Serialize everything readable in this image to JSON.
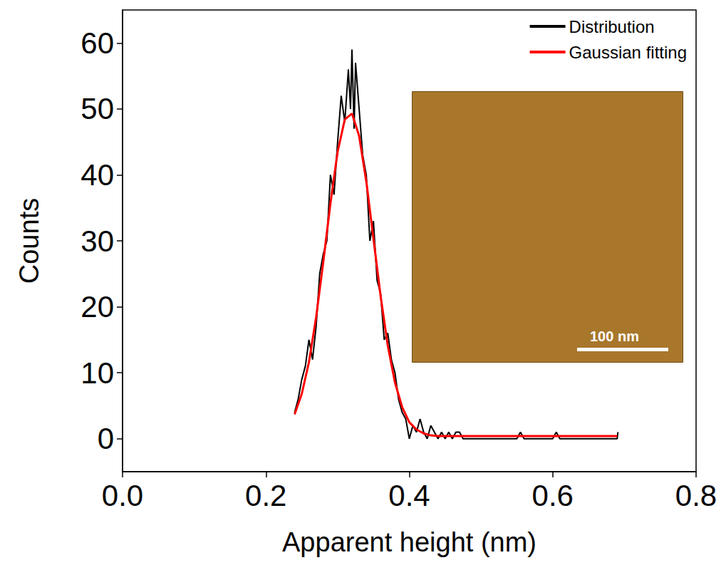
{
  "chart_data": {
    "type": "line",
    "x_label": "Apparent height (nm)",
    "y_label": "Counts",
    "xlim": [
      0,
      0.8
    ],
    "xticks": [
      {
        "value": 0,
        "label": "0.0"
      },
      0.2,
      0.4,
      0.6,
      0.8
    ],
    "ylim": [
      -5,
      65
    ],
    "yticks": [
      0,
      10,
      20,
      30,
      40,
      50,
      60
    ],
    "grid": false,
    "legend": "upper right",
    "annotations": [
      {
        "text": "100 nm"
      }
    ],
    "series": [
      {
        "name": "Distribution",
        "color": "#000000",
        "line_style": "solid",
        "x": [
          0.24,
          0.245,
          0.25,
          0.255,
          0.26,
          0.265,
          0.27,
          0.275,
          0.28,
          0.285,
          0.29,
          0.295,
          0.3,
          0.305,
          0.31,
          0.315,
          0.318,
          0.32,
          0.323,
          0.325,
          0.33,
          0.335,
          0.34,
          0.345,
          0.35,
          0.355,
          0.36,
          0.365,
          0.37,
          0.375,
          0.38,
          0.385,
          0.39,
          0.395,
          0.4,
          0.405,
          0.41,
          0.415,
          0.42,
          0.425,
          0.43,
          0.435,
          0.44,
          0.445,
          0.45,
          0.455,
          0.46,
          0.465,
          0.47,
          0.475,
          0.5,
          0.55,
          0.555,
          0.56,
          0.6,
          0.605,
          0.61,
          0.65,
          0.69,
          0.691
        ],
        "values": [
          4,
          6,
          9,
          11,
          15,
          12,
          17,
          25,
          28,
          30,
          40,
          37,
          45,
          52,
          48,
          56,
          50,
          59,
          47,
          57,
          50,
          43,
          40,
          30,
          33,
          24,
          22,
          15,
          16,
          12,
          10,
          6,
          4,
          3,
          0,
          2,
          1,
          3,
          1,
          0,
          2,
          1,
          0,
          1,
          0,
          1,
          0,
          1,
          1,
          0,
          0,
          0,
          1,
          0,
          0,
          1,
          0,
          0,
          0,
          1
        ]
      },
      {
        "name": "Gaussian fitting",
        "color": "#ff0000",
        "line_style": "solid",
        "x": [
          0.24,
          0.25,
          0.26,
          0.27,
          0.28,
          0.29,
          0.3,
          0.31,
          0.32,
          0.33,
          0.34,
          0.35,
          0.36,
          0.37,
          0.38,
          0.39,
          0.4,
          0.41,
          0.42,
          0.43,
          0.44,
          0.45,
          0.46,
          0.47,
          0.48,
          0.49,
          0.5,
          0.51,
          0.52,
          0.53,
          0.54,
          0.55,
          0.56,
          0.57,
          0.58,
          0.59,
          0.6,
          0.61,
          0.62,
          0.63,
          0.64,
          0.65,
          0.66,
          0.67,
          0.68,
          0.69
        ],
        "values": [
          3.7,
          6.8,
          11.6,
          18.4,
          26.8,
          35.7,
          43.5,
          48.4,
          49.3,
          45.9,
          39.0,
          30.3,
          21.6,
          14.1,
          8.5,
          4.8,
          2.5,
          1.4,
          0.8,
          0.5,
          0.4,
          0.4,
          0.4,
          0.4,
          0.4,
          0.4,
          0.4,
          0.4,
          0.4,
          0.4,
          0.4,
          0.4,
          0.4,
          0.4,
          0.4,
          0.4,
          0.4,
          0.4,
          0.4,
          0.4,
          0.4,
          0.4,
          0.4,
          0.4,
          0.4,
          0.4
        ]
      }
    ]
  }
}
